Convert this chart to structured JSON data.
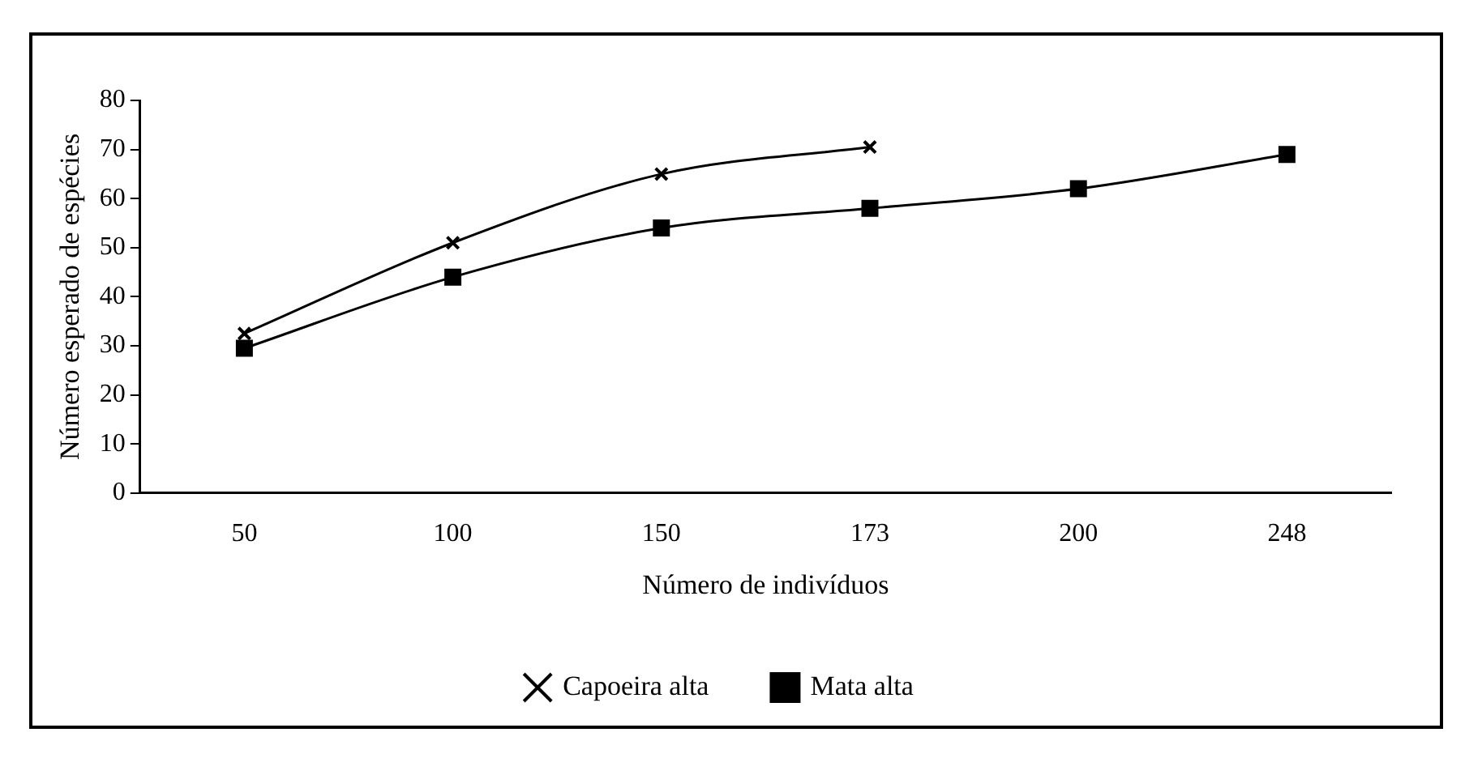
{
  "chart_data": {
    "type": "line",
    "xlabel": "Número de indivíduos",
    "ylabel": "Número esperado de espécies",
    "categories": [
      "50",
      "100",
      "150",
      "173",
      "200",
      "248"
    ],
    "series": [
      {
        "name": "Capoeira alta",
        "color": "#000000",
        "marker": "cross",
        "values": [
          32.5,
          51,
          65,
          70.5,
          null,
          null
        ]
      },
      {
        "name": "Mata alta",
        "color": "#000000",
        "marker": "square",
        "values": [
          29.5,
          44,
          54,
          58,
          62,
          69
        ]
      }
    ],
    "ylim": [
      0,
      80
    ],
    "yticks": [
      0,
      10,
      20,
      30,
      40,
      50,
      60,
      70,
      80
    ],
    "grid": false,
    "legend": "bottom",
    "line_style": "solid"
  }
}
